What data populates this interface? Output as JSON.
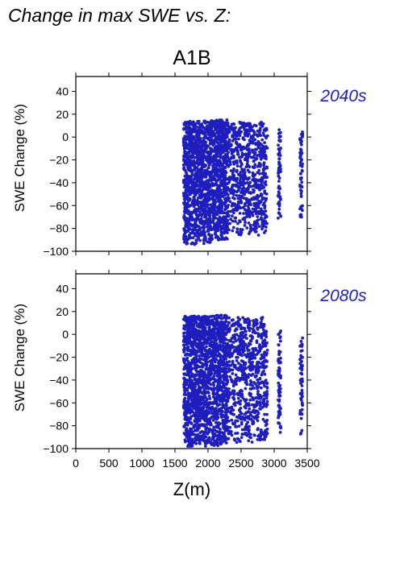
{
  "figure_title": "Change in max SWE vs. Z:",
  "scenario": "A1B",
  "colors": {
    "points": "#1e1ebe",
    "axis": "#000000",
    "background": "#ffffff"
  },
  "chart_data": [
    {
      "type": "scatter",
      "panel_label": "2040s",
      "xlabel": "Z(m)",
      "ylabel": "SWE Change (%)",
      "xlim": [
        0,
        3500
      ],
      "ylim": [
        -100,
        53
      ],
      "xticks": [
        "0",
        "500",
        "1000",
        "1500",
        "2000",
        "2500",
        "3000",
        "3500"
      ],
      "yticks": [
        "40",
        "20",
        "0",
        "−20",
        "−40",
        "−60",
        "−80",
        "−100"
      ],
      "grid": false,
      "series": [
        {
          "point_groups": [
            {
              "x_range": [
                1630,
                2050
              ],
              "y_range": [
                -94,
                14
              ],
              "count": 1100
            },
            {
              "x_range": [
                2050,
                2300
              ],
              "y_range": [
                -90,
                15
              ],
              "count": 650
            },
            {
              "x_range": [
                2300,
                2900
              ],
              "y_range": [
                -86,
                13
              ],
              "count": 700
            },
            {
              "x_range": [
                3060,
                3100
              ],
              "y_range": [
                -75,
                7
              ],
              "count": 70
            },
            {
              "x_range": [
                3390,
                3430
              ],
              "y_range": [
                -72,
                5
              ],
              "count": 60
            }
          ]
        }
      ]
    },
    {
      "type": "scatter",
      "panel_label": "2080s",
      "xlabel": "Z(m)",
      "ylabel": "SWE Change (%)",
      "xlim": [
        0,
        3500
      ],
      "ylim": [
        -100,
        53
      ],
      "xticks": [
        "0",
        "500",
        "1000",
        "1500",
        "2000",
        "2500",
        "3000",
        "3500"
      ],
      "yticks": [
        "40",
        "20",
        "0",
        "−20",
        "−40",
        "−60",
        "−80",
        "−100"
      ],
      "grid": false,
      "series": [
        {
          "point_groups": [
            {
              "x_range": [
                1630,
                2050
              ],
              "y_range": [
                -98,
                16
              ],
              "count": 1100
            },
            {
              "x_range": [
                2050,
                2300
              ],
              "y_range": [
                -98,
                17
              ],
              "count": 650
            },
            {
              "x_range": [
                2300,
                2900
              ],
              "y_range": [
                -95,
                15
              ],
              "count": 700
            },
            {
              "x_range": [
                3060,
                3100
              ],
              "y_range": [
                -88,
                4
              ],
              "count": 70
            },
            {
              "x_range": [
                3390,
                3430
              ],
              "y_range": [
                -92,
                -3
              ],
              "count": 60
            }
          ]
        }
      ]
    }
  ]
}
